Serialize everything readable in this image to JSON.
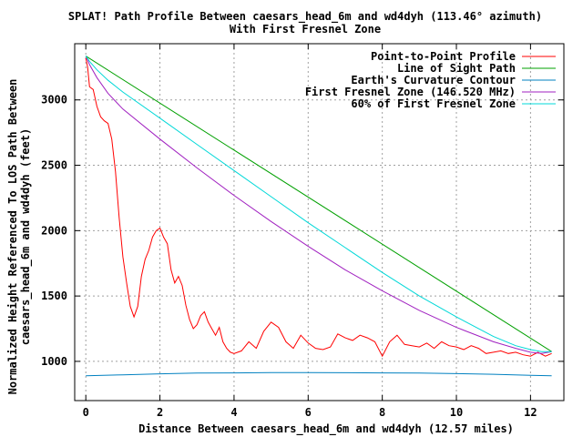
{
  "chart_data": {
    "type": "line",
    "title": "SPLAT! Path Profile Between caesars_head_6m and wd4dyh (113.46° azimuth)",
    "subtitle": "With First Fresnel Zone",
    "xlabel": "Distance Between caesars_head_6m and wd4dyh (12.57 miles)",
    "ylabel": [
      "Normalized Height Referenced To LOS Path Between",
      "caesars_head_6m and wd4dyh (feet)"
    ],
    "xlim": [
      -0.3,
      12.9
    ],
    "ylim": [
      700,
      3430
    ],
    "x_ticks": [
      {
        "value": 0,
        "label": "0"
      },
      {
        "value": 2,
        "label": "2"
      },
      {
        "value": 4,
        "label": "4"
      },
      {
        "value": 6,
        "label": "6"
      },
      {
        "value": 8,
        "label": "8"
      },
      {
        "value": 10,
        "label": "10"
      },
      {
        "value": 12,
        "label": "12"
      }
    ],
    "y_ticks": [
      {
        "value": 1000,
        "label": "1000"
      },
      {
        "value": 1500,
        "label": "1500"
      },
      {
        "value": 2000,
        "label": "2000"
      },
      {
        "value": 2500,
        "label": "2500"
      },
      {
        "value": 3000,
        "label": "3000"
      }
    ],
    "grid": true,
    "legend_position": "top-right",
    "series": [
      {
        "name": "Point-to-Point Profile",
        "color": "#ff0000",
        "x": [
          0,
          0.05,
          0.1,
          0.2,
          0.3,
          0.4,
          0.5,
          0.6,
          0.7,
          0.8,
          0.9,
          1.0,
          1.1,
          1.2,
          1.3,
          1.4,
          1.5,
          1.6,
          1.7,
          1.8,
          1.9,
          2.0,
          2.1,
          2.2,
          2.3,
          2.4,
          2.5,
          2.6,
          2.7,
          2.8,
          2.9,
          3.0,
          3.1,
          3.2,
          3.3,
          3.4,
          3.5,
          3.6,
          3.7,
          3.8,
          3.9,
          4.0,
          4.2,
          4.4,
          4.6,
          4.8,
          5.0,
          5.2,
          5.4,
          5.6,
          5.8,
          6.0,
          6.2,
          6.4,
          6.6,
          6.8,
          7.0,
          7.2,
          7.4,
          7.6,
          7.8,
          8.0,
          8.2,
          8.4,
          8.6,
          8.8,
          9.0,
          9.2,
          9.4,
          9.6,
          9.8,
          10.0,
          10.2,
          10.4,
          10.6,
          10.8,
          11.0,
          11.2,
          11.4,
          11.6,
          11.8,
          12.0,
          12.2,
          12.4,
          12.57
        ],
        "y": [
          3320,
          3250,
          3100,
          3080,
          2950,
          2870,
          2840,
          2820,
          2700,
          2450,
          2100,
          1800,
          1600,
          1420,
          1340,
          1420,
          1650,
          1780,
          1850,
          1950,
          2000,
          2020,
          1950,
          1900,
          1700,
          1600,
          1650,
          1580,
          1430,
          1320,
          1250,
          1280,
          1350,
          1380,
          1300,
          1250,
          1200,
          1260,
          1150,
          1100,
          1070,
          1060,
          1080,
          1150,
          1100,
          1230,
          1300,
          1260,
          1150,
          1100,
          1200,
          1140,
          1100,
          1090,
          1110,
          1210,
          1180,
          1160,
          1200,
          1180,
          1150,
          1040,
          1150,
          1200,
          1130,
          1120,
          1110,
          1140,
          1100,
          1150,
          1120,
          1110,
          1090,
          1120,
          1100,
          1060,
          1070,
          1080,
          1060,
          1070,
          1050,
          1040,
          1070,
          1040,
          1060
        ]
      },
      {
        "name": "Line of Sight Path",
        "color": "#00a000",
        "x": [
          0,
          12.57
        ],
        "y": [
          3335,
          1075
        ]
      },
      {
        "name": "Earth's Curvature Contour",
        "color": "#0080c0",
        "x": [
          0,
          1,
          2,
          3,
          4,
          5,
          6,
          7,
          8,
          9,
          10,
          11,
          12,
          12.57
        ],
        "y": [
          890,
          897,
          905,
          910,
          912,
          914,
          914,
          913,
          912,
          910,
          906,
          901,
          893,
          890
        ]
      },
      {
        "name": "First Fresnel Zone (146.520 MHz)",
        "color": "#a020c0",
        "x": [
          0,
          0.1,
          0.3,
          0.6,
          1,
          2,
          3,
          4,
          5,
          6,
          7,
          8,
          9,
          10,
          11,
          11.6,
          12,
          12.3,
          12.57
        ],
        "y": [
          3335,
          3270,
          3170,
          3050,
          2930,
          2700,
          2480,
          2270,
          2070,
          1880,
          1700,
          1540,
          1390,
          1260,
          1150,
          1100,
          1070,
          1060,
          1075
        ]
      },
      {
        "name": "60% of First Fresnel Zone",
        "color": "#00d8d8",
        "x": [
          0,
          0.1,
          0.3,
          0.6,
          1,
          2,
          3,
          4,
          5,
          6,
          7,
          8,
          9,
          10,
          11,
          11.6,
          12,
          12.3,
          12.57
        ],
        "y": [
          3335,
          3295,
          3230,
          3150,
          3060,
          2860,
          2660,
          2460,
          2260,
          2060,
          1870,
          1680,
          1500,
          1340,
          1190,
          1120,
          1090,
          1075,
          1075
        ]
      }
    ]
  }
}
